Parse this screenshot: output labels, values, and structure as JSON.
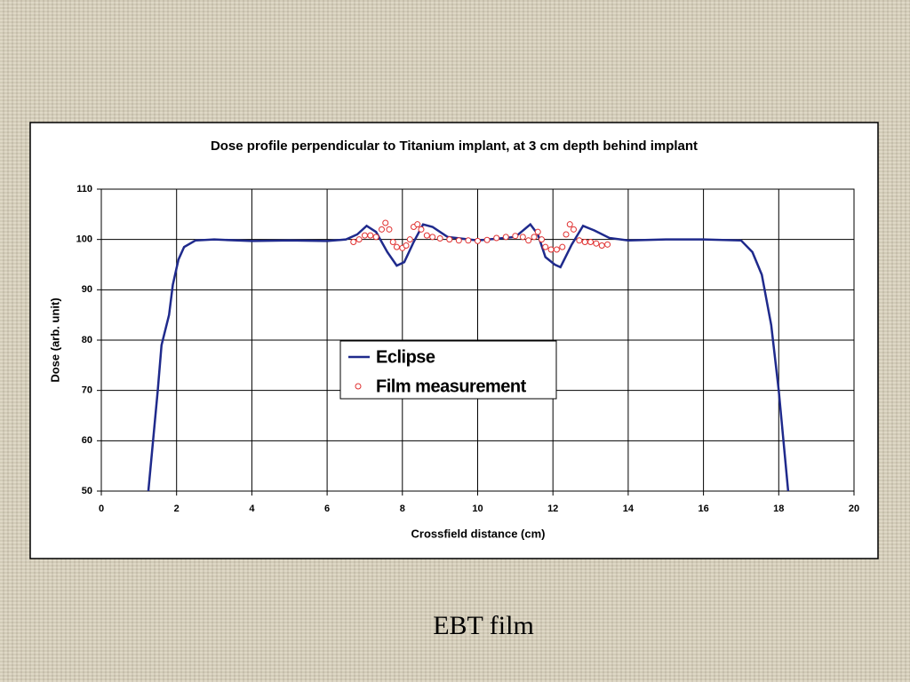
{
  "chart_data": {
    "type": "line",
    "title": "Dose profile perpendicular to Titanium implant, at 3 cm depth behind implant",
    "x_label": "Crossfield distance (cm)",
    "y_label": "Dose (arb. unit)",
    "xlim": [
      0,
      20
    ],
    "xticks": [
      0,
      2,
      4,
      6,
      8,
      10,
      12,
      14,
      16,
      18,
      20
    ],
    "ylim": [
      50,
      110
    ],
    "yticks": [
      50,
      60,
      70,
      80,
      90,
      100,
      110
    ],
    "grid": true,
    "series": [
      {
        "name": "Eclipse",
        "type": "line",
        "color": "#1f2a8c",
        "x": [
          1.25,
          1.5,
          1.6,
          1.8,
          1.9,
          2.05,
          2.2,
          2.5,
          3,
          4,
          5,
          6,
          6.5,
          6.8,
          7.05,
          7.3,
          7.6,
          7.85,
          8.05,
          8.3,
          8.55,
          8.8,
          9.2,
          10,
          11,
          11.4,
          11.6,
          11.8,
          12.05,
          12.2,
          12.5,
          12.8,
          13.1,
          13.5,
          14,
          15,
          16,
          17,
          17.3,
          17.55,
          17.8,
          18,
          18.25
        ],
        "values": [
          50,
          70,
          79,
          85,
          91,
          96,
          98.5,
          99.8,
          100,
          99.7,
          99.8,
          99.7,
          100,
          101,
          102.7,
          101.5,
          97.5,
          94.8,
          95.5,
          99.5,
          103,
          102.5,
          100.5,
          99.8,
          100.5,
          103,
          101,
          96.5,
          95,
          94.5,
          99,
          102.7,
          101.8,
          100.3,
          99.8,
          100,
          100,
          99.8,
          97.5,
          93,
          83,
          70,
          50
        ]
      },
      {
        "name": "Film measurement",
        "type": "scatter",
        "color": "#e03030",
        "x": [
          6.7,
          6.85,
          7.0,
          7.15,
          7.3,
          7.45,
          7.55,
          7.65,
          7.75,
          7.85,
          8.0,
          8.1,
          8.2,
          8.3,
          8.4,
          8.5,
          8.65,
          8.8,
          9.0,
          9.25,
          9.5,
          9.75,
          10.0,
          10.25,
          10.5,
          10.75,
          11.0,
          11.2,
          11.35,
          11.5,
          11.6,
          11.7,
          11.8,
          11.95,
          12.1,
          12.25,
          12.35,
          12.45,
          12.55,
          12.7,
          12.85,
          13.0,
          13.15,
          13.3,
          13.45
        ],
        "values": [
          99.5,
          100,
          100.8,
          100.8,
          100.5,
          102,
          103.3,
          102,
          99.5,
          98.5,
          98.3,
          98.8,
          100,
          102.5,
          103,
          102,
          100.8,
          100.5,
          100.2,
          100,
          99.8,
          99.8,
          99.7,
          99.9,
          100.3,
          100.5,
          100.7,
          100.5,
          99.8,
          100.5,
          101.5,
          100,
          98.5,
          98,
          98,
          98.5,
          101,
          103,
          102,
          99.8,
          99.5,
          99.5,
          99.2,
          98.8,
          99
        ]
      }
    ]
  },
  "caption": "EBT film"
}
